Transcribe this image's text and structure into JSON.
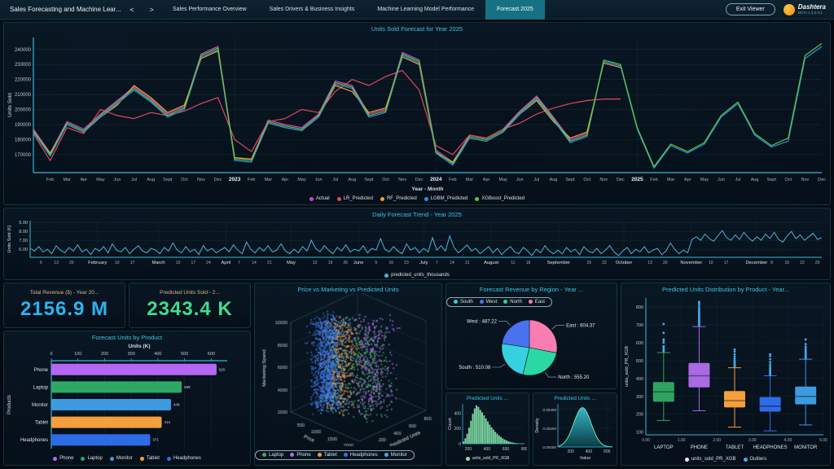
{
  "header": {
    "title": "Sales Forecasting and Machine Lear...",
    "nav": {
      "back": "<",
      "forward": ">"
    },
    "tabs": [
      "Sales Performance Overview",
      "Sales Drivers & Business Insights",
      "Machine Learning Model Performance",
      "Forecast 2025"
    ],
    "active_tab": "Forecast 2025",
    "exit_button": "Exit Viewer",
    "brand": {
      "name": "Dashtera",
      "trademark": "™",
      "version": "BETA  1.0.0-rc1",
      "bolt": "⚡",
      "accent": "#f29416"
    }
  },
  "kpis": [
    {
      "title": "Total Revenue ($) - Year 20...",
      "value": "2156.9 M",
      "color": "#2cb3f0"
    },
    {
      "title": "Predicted Units Sold - 2...",
      "value": "2343.4 K",
      "color": "#3fdd8e"
    }
  ],
  "chart_data": {
    "main": {
      "type": "line",
      "title": "Units Sold Forecast for Year 2025",
      "xlabel": "Year - Month",
      "ylabel": "Units Sold",
      "values_unit": "thousands of units",
      "ylim_thousands": [
        158,
        248
      ],
      "y_ticks_thousands": [
        170,
        180,
        190,
        200,
        210,
        220,
        230,
        240
      ],
      "x_labels": [
        "",
        "Feb",
        "Mar",
        "Apr",
        "May",
        "Jun",
        "Jul",
        "Aug",
        "Sept",
        "Oct",
        "Nov",
        "Dec",
        "2023",
        "Feb",
        "Mar",
        "Apr",
        "May",
        "Jun",
        "Jul",
        "Aug",
        "Sept",
        "Oct",
        "Nov",
        "Dec",
        "2024",
        "Feb",
        "Mar",
        "Apr",
        "May",
        "Jun",
        "Jul",
        "Aug",
        "Sept",
        "Oct",
        "Nov",
        "Dec",
        "2025",
        "Feb",
        "Mar",
        "Apr",
        "May",
        "Jun",
        "Jul",
        "Aug",
        "Sept",
        "Oct",
        "Nov",
        "Dec"
      ],
      "series": [
        {
          "name": "Actual",
          "color": "#d944c8",
          "values": [
            187,
            171,
            192,
            187,
            197,
            206,
            215,
            207,
            197,
            202,
            237,
            242,
            168,
            167,
            193,
            190,
            188,
            197,
            219,
            216,
            197,
            200,
            238,
            233,
            173,
            165,
            183,
            181,
            187,
            199,
            209,
            195,
            180,
            184,
            null,
            null,
            null,
            null,
            null,
            null,
            null,
            null,
            null,
            null,
            null,
            null,
            null,
            null
          ]
        },
        {
          "name": "LR_Predicted",
          "color": "#e0485e",
          "values": [
            184,
            166,
            188,
            184,
            200,
            196,
            194,
            198,
            196,
            199,
            204,
            208,
            180,
            172,
            192,
            194,
            200,
            198,
            212,
            220,
            216,
            222,
            226,
            213,
            176,
            170,
            183,
            181,
            187,
            191,
            197,
            201,
            204,
            206,
            207,
            207,
            null,
            null,
            null,
            null,
            null,
            null,
            null,
            null,
            null,
            null,
            null,
            null
          ]
        },
        {
          "name": "RF_Predicted",
          "color": "#f0a33a",
          "values": [
            185,
            171,
            190,
            185,
            195,
            203,
            216,
            208,
            198,
            203,
            234,
            239,
            168,
            167,
            191,
            188,
            186,
            195,
            216,
            212,
            198,
            201,
            235,
            230,
            171,
            165,
            181,
            179,
            185,
            197,
            206,
            192,
            181,
            185,
            231,
            228,
            null,
            null,
            null,
            null,
            null,
            null,
            null,
            null,
            null,
            null,
            null,
            null
          ]
        },
        {
          "name": "LGBM_Predicted",
          "color": "#2f8fe8",
          "values": [
            185,
            169,
            190,
            185,
            195,
            204,
            213,
            205,
            195,
            200,
            235,
            240,
            166,
            165,
            191,
            188,
            186,
            195,
            217,
            214,
            195,
            198,
            236,
            231,
            171,
            163,
            181,
            179,
            185,
            197,
            207,
            193,
            178,
            182,
            232,
            229,
            187,
            161,
            176,
            171,
            177,
            195,
            204,
            183,
            175,
            179,
            234,
            242
          ]
        },
        {
          "name": "XGBoost_Predicted",
          "color": "#5bc934",
          "values": [
            186,
            170,
            191,
            186,
            196,
            205,
            214,
            206,
            196,
            201,
            236,
            241,
            167,
            166,
            192,
            189,
            187,
            196,
            218,
            215,
            196,
            199,
            237,
            232,
            172,
            164,
            182,
            180,
            186,
            198,
            208,
            194,
            179,
            183,
            233,
            230,
            188,
            162,
            177,
            172,
            178,
            196,
            205,
            184,
            176,
            181,
            236,
            244
          ]
        }
      ]
    },
    "daily": {
      "type": "line",
      "title": "Daily Forecast Trend - Year 2025",
      "ylabel": "Units Sold (K)",
      "legend": "predicted_units_thousands",
      "color": "#4fb3d9",
      "ylim": [
        5.1,
        9.2
      ],
      "y_ticks": [
        "6.00",
        "7.00",
        "8.00",
        "9.00"
      ],
      "x_ticks": [
        [
          6,
          "6"
        ],
        [
          13,
          "13"
        ],
        [
          20,
          "20"
        ],
        [
          32,
          "February"
        ],
        [
          41,
          "10"
        ],
        [
          48,
          "17"
        ],
        [
          60,
          "March"
        ],
        [
          69,
          "10"
        ],
        [
          76,
          "17"
        ],
        [
          83,
          "24"
        ],
        [
          91,
          "April"
        ],
        [
          97,
          "7"
        ],
        [
          104,
          "14"
        ],
        [
          111,
          "21"
        ],
        [
          121,
          "May"
        ],
        [
          132,
          "12"
        ],
        [
          139,
          "19"
        ],
        [
          146,
          "26"
        ],
        [
          152,
          "June"
        ],
        [
          160,
          "9"
        ],
        [
          167,
          "16"
        ],
        [
          174,
          "23"
        ],
        [
          182,
          "July"
        ],
        [
          188,
          "7"
        ],
        [
          195,
          "14"
        ],
        [
          202,
          "21"
        ],
        [
          213,
          "August"
        ],
        [
          223,
          "11"
        ],
        [
          230,
          "18"
        ],
        [
          244,
          "September"
        ],
        [
          258,
          "15"
        ],
        [
          265,
          "22"
        ],
        [
          274,
          "October"
        ],
        [
          286,
          "13"
        ],
        [
          293,
          "20"
        ],
        [
          305,
          "November"
        ],
        [
          314,
          "10"
        ],
        [
          321,
          "17"
        ],
        [
          335,
          "December"
        ],
        [
          342,
          "8"
        ],
        [
          349,
          "15"
        ],
        [
          356,
          "22"
        ],
        [
          363,
          "29"
        ]
      ],
      "values": [
        6.1,
        5.8,
        6.3,
        5.7,
        6.0,
        5.5,
        6.4,
        5.9,
        5.6,
        6.2,
        5.8,
        6.5,
        5.7,
        6.0,
        5.4,
        6.1,
        5.8,
        6.3,
        5.6,
        6.6,
        5.9,
        5.7,
        6.2,
        5.5,
        6.0,
        6.4,
        5.8,
        5.6,
        6.1,
        5.9,
        5.5,
        6.2,
        5.8,
        6.7,
        5.9,
        5.6,
        6.3,
        5.7,
        6.0,
        5.4,
        6.4,
        5.8,
        6.1,
        5.6,
        5.9,
        6.2,
        5.7,
        6.5,
        5.9,
        5.5,
        6.8,
        6.0,
        5.6,
        6.2,
        5.8,
        6.4,
        5.7,
        5.9,
        6.6,
        5.8,
        5.5,
        6.0,
        5.6,
        6.3,
        5.8,
        7.0,
        6.1,
        5.7,
        6.4,
        5.9,
        5.5,
        6.2,
        5.8,
        6.5,
        5.7,
        6.0,
        5.8,
        6.4,
        5.6,
        6.1,
        5.9,
        7.2,
        6.0,
        5.7,
        6.3,
        5.8,
        5.5,
        6.6,
        5.9,
        6.2,
        5.6,
        6.1,
        5.7,
        7.3,
        5.9,
        6.4,
        5.8,
        7.5,
        6.2,
        5.6,
        6.0,
        6.5,
        5.8,
        6.1,
        5.5,
        5.9,
        6.3,
        5.6,
        6.1,
        5.4,
        5.9,
        6.3,
        5.7,
        5.5,
        6.2,
        5.8,
        5.3,
        6.0,
        5.6,
        6.4,
        5.8,
        5.5,
        5.9,
        5.5,
        6.2,
        5.7,
        6.0,
        5.4,
        6.3,
        5.8,
        5.6,
        6.1,
        5.5,
        5.9,
        6.4,
        5.7,
        5.3,
        5.8,
        6.2,
        5.5,
        6.0,
        5.7,
        6.3,
        5.6,
        5.9,
        6.1,
        5.4,
        5.8,
        6.7,
        6.0,
        5.5,
        5.9,
        5.6,
        7.1,
        7.4,
        7.0,
        7.7,
        7.2,
        6.9,
        7.5,
        8.1,
        7.3,
        7.0,
        7.6,
        7.1,
        7.9,
        7.3,
        6.9,
        7.4,
        7.0,
        7.7,
        7.2,
        7.9,
        7.1,
        6.8,
        7.5,
        8.0,
        7.2,
        7.6,
        7.0,
        7.4,
        7.8,
        7.1,
        7.3
      ]
    },
    "bars": {
      "type": "bar",
      "title": "Forecast Units by Product",
      "xlabel": "Units (K)",
      "ylabel": "Products",
      "x_ticks": [
        0,
        100,
        200,
        300,
        400,
        500,
        600
      ],
      "xlim": [
        0,
        660
      ],
      "categories": [
        "Phone",
        "Laptop",
        "Monitor",
        "Tablet",
        "Headphones"
      ],
      "values": [
        620,
        489,
        449,
        414,
        371
      ],
      "colors": [
        "#b566f2",
        "#2fa866",
        "#3d9ae0",
        "#f59e3d",
        "#2e6be6"
      ]
    },
    "scatter3d": {
      "type": "scatter",
      "title": "Price vs Marketing vs Predicted Units",
      "axes": {
        "x": {
          "label": "Price",
          "ticks": [
            500,
            1000,
            1500,
            2000
          ],
          "range": [
            0,
            2100
          ]
        },
        "y": {
          "label": "Predicted Units",
          "ticks": [
            200,
            400,
            600,
            800
          ],
          "range": [
            0,
            880
          ]
        },
        "z": {
          "label": "Marketing Spend",
          "ticks": [
            2000,
            4000,
            6000,
            8000,
            10000
          ],
          "range": [
            2000,
            10000
          ]
        }
      },
      "clusters": [
        {
          "name": "Laptop",
          "color": "#3fae5f",
          "count": 300,
          "price": [
            800,
            2000
          ],
          "units": [
            180,
            620
          ],
          "marketing": [
            2000,
            10000
          ]
        },
        {
          "name": "Phone",
          "color": "#b06ce8",
          "count": 320,
          "price": [
            600,
            1700
          ],
          "units": [
            280,
            820
          ],
          "marketing": [
            2000,
            10000
          ]
        },
        {
          "name": "Tablet",
          "color": "#f59e3d",
          "count": 330,
          "price": [
            250,
            1150
          ],
          "units": [
            140,
            560
          ],
          "marketing": [
            2000,
            10000
          ]
        },
        {
          "name": "Headphones",
          "color": "#3b6fe0",
          "count": 700,
          "price": [
            80,
            650
          ],
          "units": [
            100,
            480
          ],
          "marketing": [
            2000,
            10000
          ]
        },
        {
          "name": "Monitor",
          "color": "#49a8e0",
          "count": 380,
          "price": [
            150,
            950
          ],
          "units": [
            130,
            520
          ],
          "marketing": [
            2000,
            10000
          ]
        }
      ],
      "legend_order": [
        "Laptop",
        "Phone",
        "Tablet",
        "Headphones",
        "Monitor"
      ]
    },
    "pie": {
      "type": "pie",
      "title": "Forecast Revenue by Region - Year ...",
      "legend_order": [
        "South",
        "West",
        "North",
        "East"
      ],
      "slices": [
        {
          "name": "East",
          "value": 604.37,
          "label": "East : 604.37",
          "color": "#f97db1"
        },
        {
          "name": "North",
          "value": 555.2,
          "label": "North : 555.20",
          "color": "#2ad8a4"
        },
        {
          "name": "South",
          "value": 510.08,
          "label": "South : 510.08",
          "color": "#35d1e0"
        },
        {
          "name": "West",
          "value": 487.22,
          "label": "West : 487.22",
          "color": "#4a72ee"
        }
      ]
    },
    "histogram": {
      "type": "bar",
      "title": "Predicted Units ...",
      "ylabel": "Count",
      "legend": "units_sold_PR_XGB",
      "color": "#86e6ac",
      "bin_start": 140,
      "bin_width": 20,
      "counts": [
        30,
        70,
        130,
        210,
        300,
        390,
        460,
        500,
        480,
        440,
        410,
        370,
        330,
        290,
        250,
        215,
        185,
        155,
        130,
        108,
        88,
        70,
        55,
        42,
        32,
        24,
        18,
        13,
        9,
        6,
        4,
        3,
        2
      ],
      "y_ticks": [
        0,
        200,
        400
      ],
      "ymax": 520,
      "x_ticks": [
        200,
        400,
        600,
        800
      ]
    },
    "density": {
      "type": "area",
      "title": "Predicted Units ...",
      "xlabel": "Value",
      "ylabel": "Density",
      "mean": 330,
      "sd": 95,
      "peak": 0.0042,
      "x_range": [
        60,
        660
      ],
      "x_ticks": [
        200,
        400,
        600
      ],
      "y_ticks": [
        "0.00000",
        "0.00200",
        "0.00400"
      ],
      "y_tick_vals": [
        0,
        0.002,
        0.004
      ],
      "ymax": 0.0046,
      "fill_top": "#3bc8de",
      "fill_bottom": "#0b3f46",
      "stroke": "#6fe3b0"
    },
    "box": {
      "type": "box",
      "title": "Predicted Units Distribution by Product - Year...",
      "ylabel": "units_sold_PR_XGB",
      "y_ticks": [
        100,
        200,
        300,
        400,
        500,
        600,
        700,
        800
      ],
      "ylim": [
        85,
        850
      ],
      "x_ticks": [
        "0.00",
        "1.00",
        "2.00",
        "3.00",
        "4.00",
        "5.00"
      ],
      "legend": [
        {
          "label": "units_sold_PR_XGB",
          "color": "#e8eef0"
        },
        {
          "label": "Outliers",
          "color": "#4aa9e8"
        }
      ],
      "outlier_color": "#4aa9e8",
      "boxes": [
        {
          "label": "LAPTOP",
          "color": "#2fa35f",
          "low": 165,
          "q1": 270,
          "median": 325,
          "q3": 380,
          "high": 545,
          "outliers": [
            552,
            558,
            565,
            572,
            580,
            600,
            612,
            618,
            655,
            705
          ]
        },
        {
          "label": "PHONE",
          "color": "#a96ae3",
          "low": 220,
          "q1": 350,
          "median": 415,
          "q3": 487,
          "high": 690,
          "outliers": [
            698,
            704,
            710,
            716,
            722,
            728,
            735,
            742,
            750,
            758,
            766,
            775,
            785,
            795,
            808,
            818,
            828
          ]
        },
        {
          "label": "TABLET",
          "color": "#f59e3d",
          "low": 128,
          "q1": 238,
          "median": 276,
          "q3": 330,
          "high": 460,
          "outliers": [
            466,
            472,
            478,
            485,
            492,
            500,
            510,
            522,
            535,
            550,
            562
          ]
        },
        {
          "label": "HEADPHONES",
          "color": "#2e6be6",
          "low": 107,
          "q1": 215,
          "median": 245,
          "q3": 296,
          "high": 415,
          "outliers": [
            420,
            426,
            432,
            440,
            448,
            456,
            466,
            478,
            492,
            508,
            525,
            535
          ]
        },
        {
          "label": "MONITOR",
          "color": "#3d9ae0",
          "low": 140,
          "q1": 255,
          "median": 300,
          "q3": 355,
          "high": 508,
          "outliers": [
            514,
            520,
            526,
            533,
            540,
            548,
            557,
            567,
            578,
            592,
            618
          ]
        }
      ]
    }
  }
}
